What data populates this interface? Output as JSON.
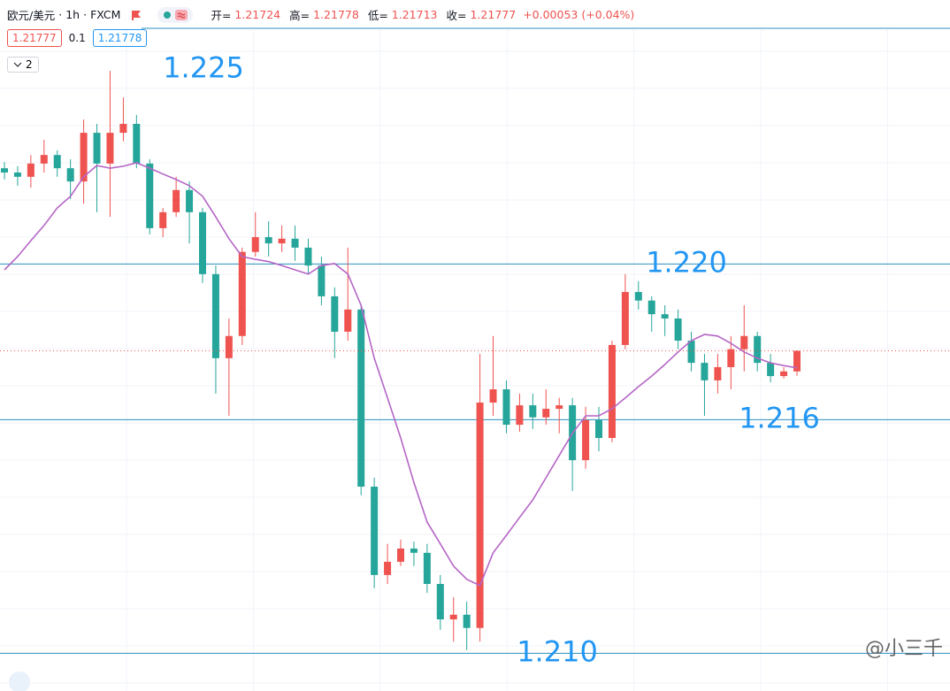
{
  "header": {
    "symbol": "欧元/美元",
    "separator": "·",
    "interval": "1h",
    "source": "FXCM",
    "open_label": "开=",
    "open": "1.21724",
    "high_label": "高=",
    "high": "1.21778",
    "low_label": "低=",
    "low": "1.21713",
    "close_label": "收=",
    "close": "1.21777",
    "change": "+0.00053",
    "change_pct": "(+0.04%)",
    "bid": "1.21777",
    "spread": "0.1",
    "ask": "1.21778",
    "indicators": "2"
  },
  "watermark": "@小三千",
  "chart_data": {
    "type": "candlestick",
    "ylim": [
      1.20903,
      1.2261
    ],
    "up_color": "#ef5350",
    "down_color": "#26a69a",
    "grid": true,
    "candles": [
      [
        1.22246,
        1.22262,
        1.22217,
        1.22235
      ],
      [
        1.22235,
        1.22251,
        1.22201,
        1.22224
      ],
      [
        1.22224,
        1.2228,
        1.22196,
        1.22258
      ],
      [
        1.22258,
        1.22319,
        1.22235,
        1.2228
      ],
      [
        1.2228,
        1.22292,
        1.22224,
        1.22246
      ],
      [
        1.22246,
        1.22269,
        1.22167,
        1.22212
      ],
      [
        1.22212,
        1.22371,
        1.22155,
        1.22337
      ],
      [
        1.22337,
        1.2236,
        1.22133,
        1.22258
      ],
      [
        1.22258,
        1.22496,
        1.22121,
        1.22337
      ],
      [
        1.22337,
        1.22428,
        1.22315,
        1.2236
      ],
      [
        1.2236,
        1.22383,
        1.22246,
        1.22258
      ],
      [
        1.22258,
        1.22269,
        1.22076,
        1.22092
      ],
      [
        1.22092,
        1.22144,
        1.22069,
        1.22133
      ],
      [
        1.22133,
        1.22224,
        1.22121,
        1.2219
      ],
      [
        1.2219,
        1.22212,
        1.22053,
        1.22133
      ],
      [
        1.22133,
        1.22144,
        1.21951,
        1.21974
      ],
      [
        1.21974,
        1.21996,
        1.21667,
        1.21758
      ],
      [
        1.21758,
        1.2186,
        1.2161,
        1.21815
      ],
      [
        1.21815,
        1.22042,
        1.21792,
        1.22031
      ],
      [
        1.22031,
        1.22133,
        1.22019,
        1.22069
      ],
      [
        1.22069,
        1.2211,
        1.22019,
        1.22053
      ],
      [
        1.22053,
        1.22099,
        1.22031,
        1.22065
      ],
      [
        1.22065,
        1.22099,
        1.22008,
        1.22042
      ],
      [
        1.22042,
        1.22065,
        1.21974,
        1.21996
      ],
      [
        1.21996,
        1.22019,
        1.21894,
        1.21917
      ],
      [
        1.21917,
        1.2194,
        1.21758,
        1.21826
      ],
      [
        1.21826,
        1.22042,
        1.21803,
        1.21883
      ],
      [
        1.21883,
        1.21894,
        1.21406,
        1.21428
      ],
      [
        1.21428,
        1.21451,
        1.21167,
        1.21201
      ],
      [
        1.21201,
        1.21281,
        1.21178,
        1.21235
      ],
      [
        1.21235,
        1.21292,
        1.21224,
        1.21269
      ],
      [
        1.21269,
        1.21287,
        1.21224,
        1.21258
      ],
      [
        1.21258,
        1.21281,
        1.21155,
        1.21178
      ],
      [
        1.21178,
        1.21201,
        1.2106,
        1.21087
      ],
      [
        1.21087,
        1.21144,
        1.2103,
        1.21099
      ],
      [
        1.21099,
        1.21133,
        1.21008,
        1.21065
      ],
      [
        1.21065,
        1.21769,
        1.2103,
        1.21644
      ],
      [
        1.21644,
        1.21815,
        1.2161,
        1.21678
      ],
      [
        1.21678,
        1.21701,
        1.21565,
        1.21587
      ],
      [
        1.21587,
        1.21667,
        1.21569,
        1.21637
      ],
      [
        1.21637,
        1.21667,
        1.21576,
        1.21606
      ],
      [
        1.21606,
        1.21678,
        1.21587,
        1.21628
      ],
      [
        1.21628,
        1.21656,
        1.21565,
        1.21637
      ],
      [
        1.21637,
        1.21656,
        1.21417,
        1.21496
      ],
      [
        1.21496,
        1.21633,
        1.21474,
        1.21599
      ],
      [
        1.21599,
        1.21633,
        1.21519,
        1.21553
      ],
      [
        1.21553,
        1.21803,
        1.21542,
        1.21792
      ],
      [
        1.21792,
        1.21974,
        1.21781,
        1.21928
      ],
      [
        1.21928,
        1.21956,
        1.21883,
        1.21906
      ],
      [
        1.21906,
        1.21917,
        1.21826,
        1.21871
      ],
      [
        1.21871,
        1.21894,
        1.21815,
        1.2186
      ],
      [
        1.2186,
        1.21883,
        1.21781,
        1.21803
      ],
      [
        1.21803,
        1.21826,
        1.21724,
        1.21746
      ],
      [
        1.21746,
        1.21769,
        1.2161,
        1.21701
      ],
      [
        1.21701,
        1.21769,
        1.21667,
        1.21735
      ],
      [
        1.21735,
        1.21815,
        1.21678,
        1.21781
      ],
      [
        1.21781,
        1.21894,
        1.21724,
        1.21815
      ],
      [
        1.21815,
        1.21826,
        1.21724,
        1.21746
      ],
      [
        1.21746,
        1.21769,
        1.21696,
        1.21712
      ],
      [
        1.21712,
        1.21735,
        1.21706,
        1.21724
      ],
      [
        1.21724,
        1.21778,
        1.21713,
        1.21777
      ]
    ],
    "ma": {
      "color": "#b565c6",
      "values": [
        1.21985,
        1.22019,
        1.2206,
        1.22099,
        1.22144,
        1.22174,
        1.22224,
        1.22253,
        1.22246,
        1.22251,
        1.2226,
        1.22246,
        1.22231,
        1.22217,
        1.22201,
        1.22174,
        1.22121,
        1.22065,
        1.22019,
        1.22012,
        1.22006,
        1.21996,
        1.21985,
        1.21974,
        1.21996,
        1.22001,
        1.21974,
        1.21894,
        1.21758,
        1.21656,
        1.21553,
        1.21439,
        1.21337,
        1.21281,
        1.21224,
        1.2119,
        1.21174,
        1.21258,
        1.21303,
        1.21349,
        1.21394,
        1.21451,
        1.21508,
        1.21565,
        1.2161,
        1.2161,
        1.21628,
        1.21656,
        1.21685,
        1.21712,
        1.21742,
        1.21774,
        1.21803,
        1.21819,
        1.21815,
        1.21796,
        1.21774,
        1.21758,
        1.21746,
        1.21739,
        1.21733
      ]
    },
    "last_price_line": true,
    "annotations": [
      {
        "text": "1.225",
        "value": 1.225,
        "line": false
      },
      {
        "text": "1.220",
        "value": 1.22,
        "line": true
      },
      {
        "text": "1.216",
        "value": 1.216,
        "line": true
      },
      {
        "text": "1.210",
        "value": 1.21,
        "line": true
      }
    ],
    "level_color": "#2a8fc0",
    "annotation_color": "#2196f3"
  }
}
